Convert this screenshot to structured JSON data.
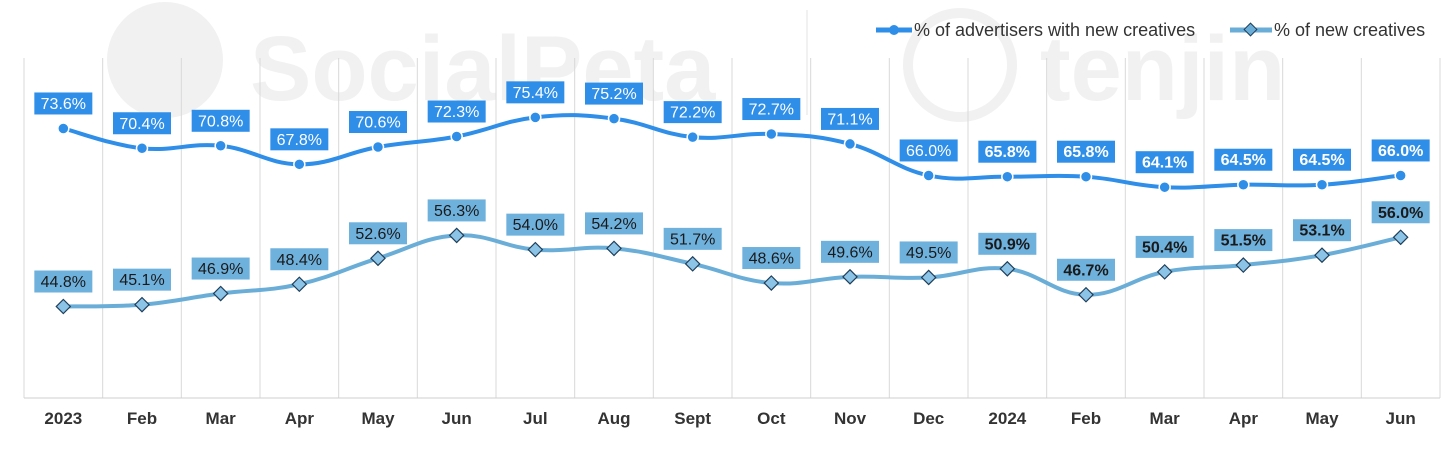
{
  "watermark": {
    "left": "SocialPeta",
    "right": "tenjin"
  },
  "chart_data": {
    "type": "line",
    "title": "",
    "xlabel": "",
    "ylabel": "",
    "categories": [
      "2023",
      "Feb",
      "Mar",
      "Apr",
      "May",
      "Jun",
      "Jul",
      "Aug",
      "Sept",
      "Oct",
      "Nov",
      "Dec",
      "2024",
      "Feb",
      "Mar",
      "Apr",
      "May",
      "Jun"
    ],
    "ylim": [
      30,
      85
    ],
    "grid": "vertical",
    "legend_position": "top-right",
    "series": [
      {
        "name": "% of advertisers with new creatives",
        "marker": "circle",
        "color": "#2e8ee8",
        "label_bg": "#2e8ee8",
        "values": [
          73.6,
          70.4,
          70.8,
          67.8,
          70.6,
          72.3,
          75.4,
          75.2,
          72.2,
          72.7,
          71.1,
          66.0,
          65.8,
          65.8,
          64.1,
          64.5,
          64.5,
          66.0
        ],
        "labels": [
          "73.6%",
          "70.4%",
          "70.8%",
          "67.8%",
          "70.6%",
          "72.3%",
          "75.4%",
          "75.2%",
          "72.2%",
          "72.7%",
          "71.1%",
          "66.0%",
          "65.8%",
          "65.8%",
          "64.1%",
          "64.5%",
          "64.5%",
          "66.0%"
        ],
        "bold_from_index": 12
      },
      {
        "name": "% of new creatives",
        "marker": "diamond",
        "color": "#6aaed8",
        "label_bg": "#6fb1dd",
        "values": [
          44.8,
          45.1,
          46.9,
          48.4,
          52.6,
          56.3,
          54.0,
          54.2,
          51.7,
          48.6,
          49.6,
          49.5,
          50.9,
          46.7,
          50.4,
          51.5,
          53.1,
          56.0
        ],
        "labels": [
          "44.8%",
          "45.1%",
          "46.9%",
          "48.4%",
          "52.6%",
          "56.3%",
          "54.0%",
          "54.2%",
          "51.7%",
          "48.6%",
          "49.6%",
          "49.5%",
          "50.9%",
          "46.7%",
          "50.4%",
          "51.5%",
          "53.1%",
          "56.0%"
        ],
        "bold_from_index": 12
      }
    ]
  }
}
